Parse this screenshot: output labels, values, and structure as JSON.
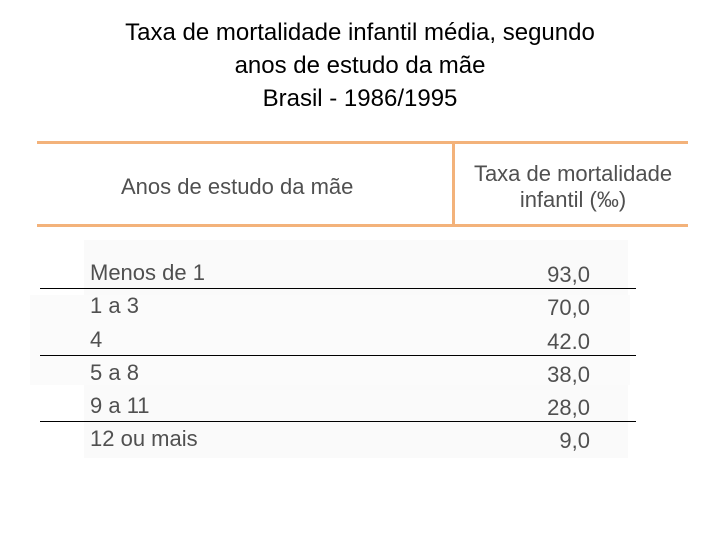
{
  "title": {
    "line1": "Taxa de mortalidade infantil média, segundo",
    "line2": "anos de estudo da mãe",
    "line3": "Brasil - 1986/1995"
  },
  "table": {
    "headers": {
      "col1": "Anos de estudo da mãe",
      "col2_line1": "Taxa de mortalidade",
      "col2_line2": "infantil (‰)"
    },
    "rows": [
      {
        "label": "Menos de 1",
        "value": "93,0"
      },
      {
        "label": "1 a 3",
        "value": "70,0"
      },
      {
        "label": "4",
        "value": "42.0"
      },
      {
        "label": "5 a 8",
        "value": "38,0"
      },
      {
        "label": "9 a 11",
        "value": "28,0"
      },
      {
        "label": "12 ou mais",
        "value": "9,0"
      }
    ]
  },
  "colors": {
    "header_rule": "#f3b27a",
    "text": "#505050"
  }
}
